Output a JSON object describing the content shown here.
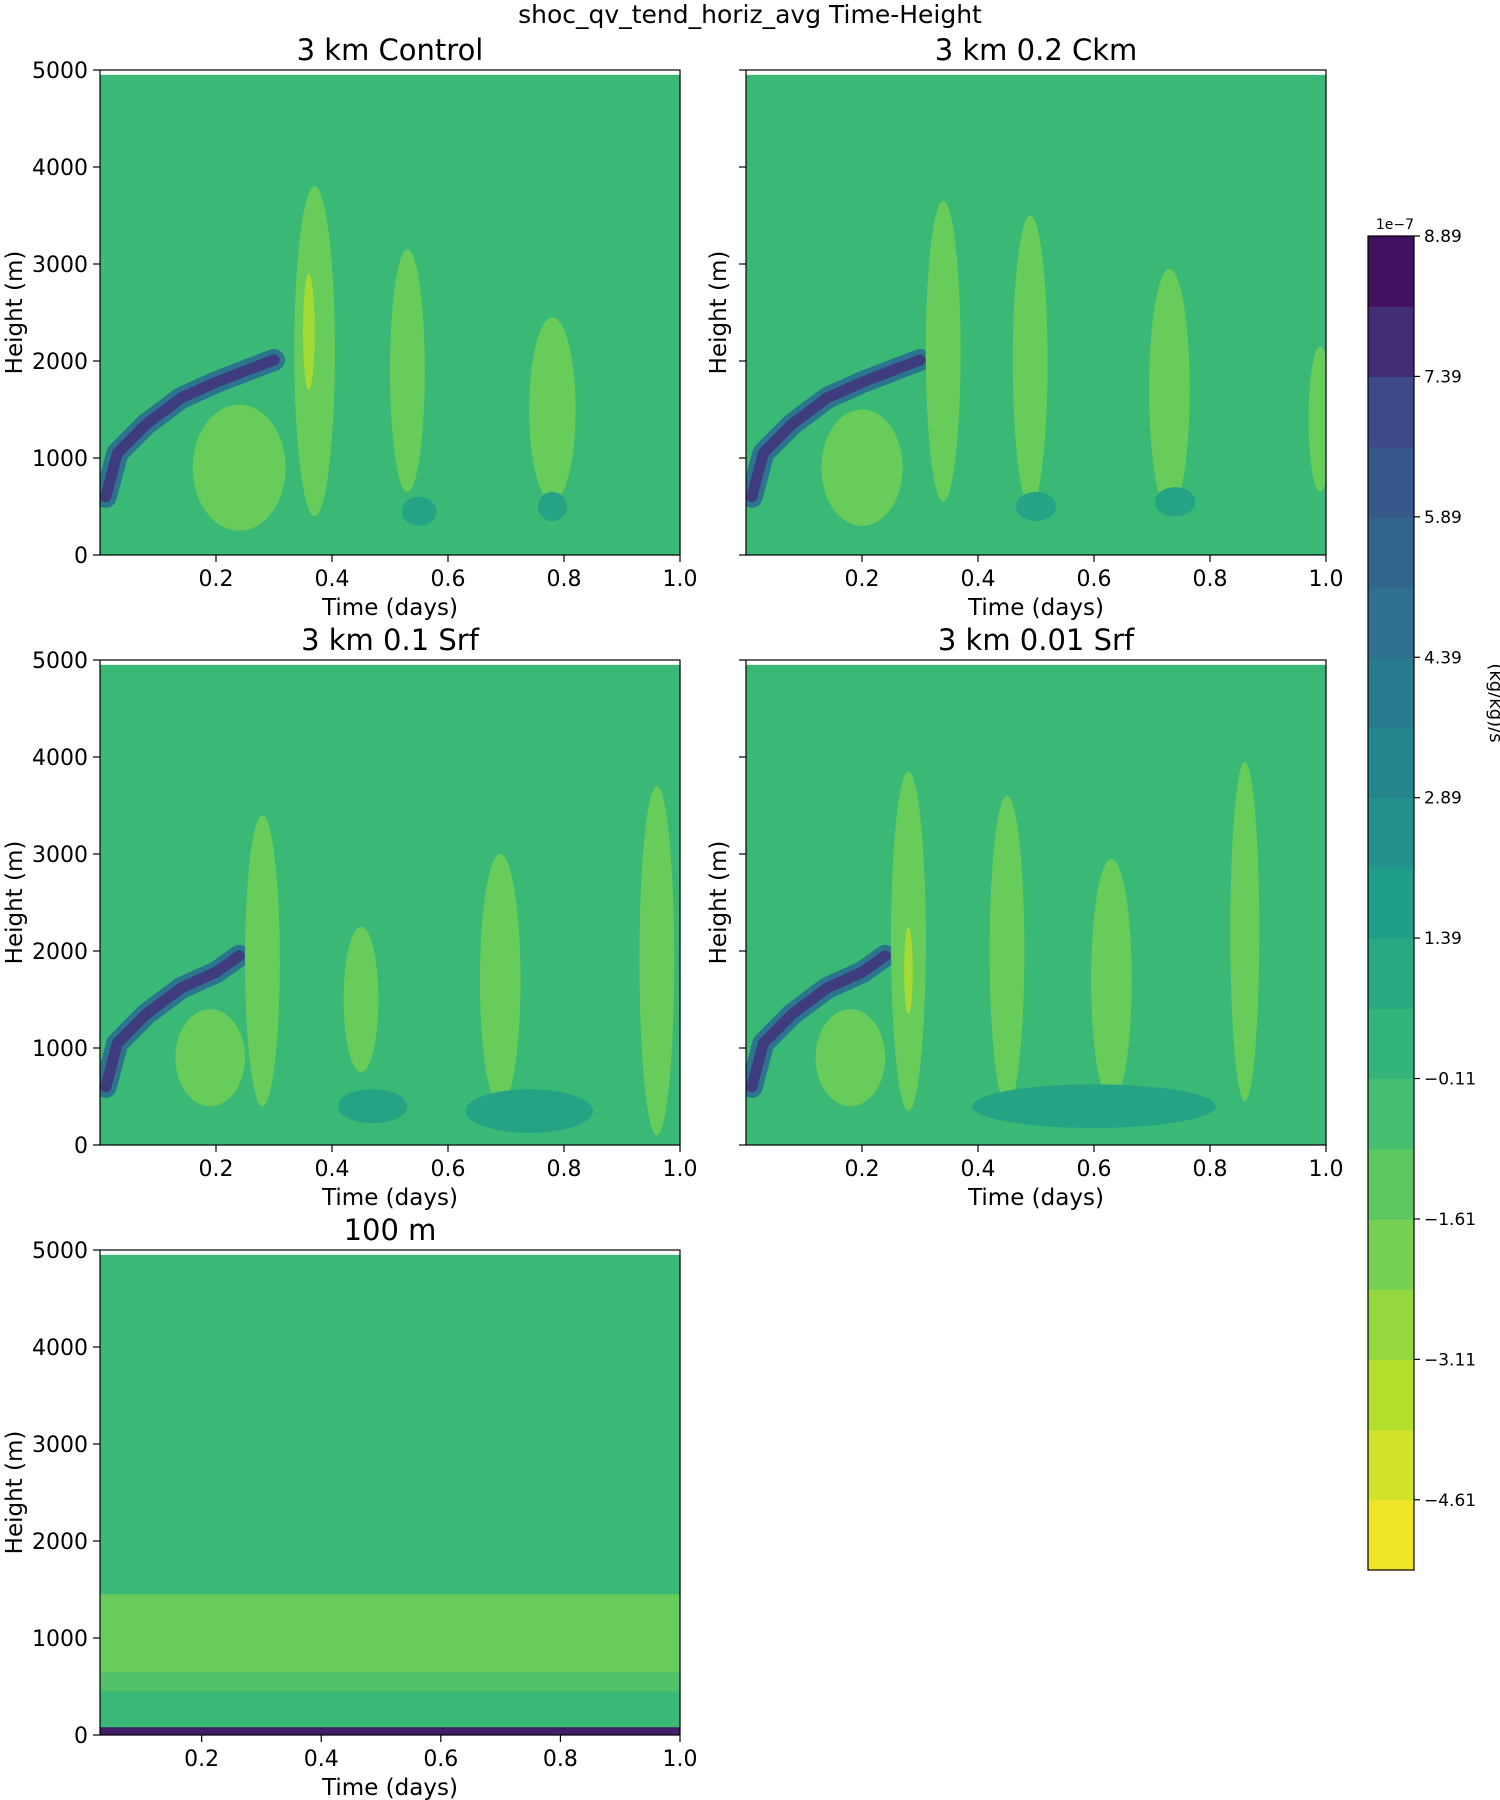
{
  "figure": {
    "suptitle": "shoc_qv_tend_horiz_avg Time-Height"
  },
  "colors": {
    "background_level": "#24a884",
    "ramp_dark": "#440154",
    "ramp_mid": "#21918c",
    "ramp_light": "#fde725"
  },
  "chart_data": [
    {
      "type": "heatmap",
      "title": "3 km Control",
      "xlabel": "Time (days)",
      "ylabel": "Height (m)",
      "xlim": [
        0.0,
        1.0
      ],
      "ylim": [
        0,
        5000
      ],
      "xticks": [
        "0.2",
        "0.4",
        "0.6",
        "0.8",
        "1.0"
      ],
      "yticks": [
        "0",
        "1000",
        "2000",
        "3000",
        "4000",
        "5000"
      ],
      "background_level": -0.11,
      "features": [
        {
          "kind": "band",
          "level": 7.4,
          "points": [
            [
              0.01,
              600
            ],
            [
              0.03,
              1050
            ],
            [
              0.08,
              1350
            ],
            [
              0.14,
              1620
            ],
            [
              0.2,
              1780
            ],
            [
              0.26,
              1920
            ],
            [
              0.3,
              2010
            ]
          ]
        },
        {
          "kind": "blob",
          "level": -1.61,
          "center": [
            0.37,
            2100
          ],
          "size": [
            0.07,
            3400
          ]
        },
        {
          "kind": "blob",
          "level": -1.61,
          "center": [
            0.53,
            1900
          ],
          "size": [
            0.06,
            2500
          ]
        },
        {
          "kind": "blob",
          "level": -1.61,
          "center": [
            0.78,
            1500
          ],
          "size": [
            0.08,
            1900
          ]
        },
        {
          "kind": "blob",
          "level": -1.61,
          "center": [
            0.24,
            900
          ],
          "size": [
            0.16,
            1300
          ]
        },
        {
          "kind": "blob",
          "level": -3.11,
          "center": [
            0.36,
            2300
          ],
          "size": [
            0.02,
            1200
          ]
        },
        {
          "kind": "blob",
          "level": 1.39,
          "center": [
            0.55,
            450
          ],
          "size": [
            0.06,
            300
          ]
        },
        {
          "kind": "blob",
          "level": 1.39,
          "center": [
            0.78,
            500
          ],
          "size": [
            0.05,
            300
          ]
        }
      ]
    },
    {
      "type": "heatmap",
      "title": "3 km 0.2 Ckm",
      "xlabel": "Time (days)",
      "ylabel": "Height (m)",
      "xlim": [
        0.0,
        1.0
      ],
      "ylim": [
        0,
        5000
      ],
      "xticks": [
        "0.2",
        "0.4",
        "0.6",
        "0.8",
        "1.0"
      ],
      "yticks": [
        "0",
        "1000",
        "2000",
        "3000",
        "4000",
        "5000"
      ],
      "background_level": -0.11,
      "features": [
        {
          "kind": "band",
          "level": 7.4,
          "points": [
            [
              0.01,
              600
            ],
            [
              0.03,
              1050
            ],
            [
              0.08,
              1350
            ],
            [
              0.14,
              1620
            ],
            [
              0.2,
              1780
            ],
            [
              0.26,
              1920
            ],
            [
              0.3,
              2010
            ]
          ]
        },
        {
          "kind": "blob",
          "level": -1.61,
          "center": [
            0.34,
            2100
          ],
          "size": [
            0.06,
            3100
          ]
        },
        {
          "kind": "blob",
          "level": -1.61,
          "center": [
            0.49,
            2000
          ],
          "size": [
            0.06,
            3000
          ]
        },
        {
          "kind": "blob",
          "level": -1.61,
          "center": [
            0.73,
            1700
          ],
          "size": [
            0.07,
            2500
          ]
        },
        {
          "kind": "blob",
          "level": -1.61,
          "center": [
            0.99,
            1400
          ],
          "size": [
            0.04,
            1500
          ]
        },
        {
          "kind": "blob",
          "level": -1.61,
          "center": [
            0.2,
            900
          ],
          "size": [
            0.14,
            1200
          ]
        },
        {
          "kind": "blob",
          "level": 1.39,
          "center": [
            0.5,
            500
          ],
          "size": [
            0.07,
            300
          ]
        },
        {
          "kind": "blob",
          "level": 1.39,
          "center": [
            0.74,
            550
          ],
          "size": [
            0.07,
            300
          ]
        }
      ]
    },
    {
      "type": "heatmap",
      "title": "3 km 0.1 Srf",
      "xlabel": "Time (days)",
      "ylabel": "Height (m)",
      "xlim": [
        0.0,
        1.0
      ],
      "ylim": [
        0,
        5000
      ],
      "xticks": [
        "0.2",
        "0.4",
        "0.6",
        "0.8",
        "1.0"
      ],
      "yticks": [
        "0",
        "1000",
        "2000",
        "3000",
        "4000",
        "5000"
      ],
      "background_level": -0.11,
      "features": [
        {
          "kind": "band",
          "level": 7.4,
          "points": [
            [
              0.01,
              600
            ],
            [
              0.03,
              1050
            ],
            [
              0.08,
              1350
            ],
            [
              0.14,
              1620
            ],
            [
              0.2,
              1780
            ],
            [
              0.24,
              1950
            ]
          ]
        },
        {
          "kind": "blob",
          "level": -1.61,
          "center": [
            0.28,
            1900
          ],
          "size": [
            0.06,
            3000
          ]
        },
        {
          "kind": "blob",
          "level": -1.61,
          "center": [
            0.45,
            1500
          ],
          "size": [
            0.06,
            1500
          ]
        },
        {
          "kind": "blob",
          "level": -1.61,
          "center": [
            0.69,
            1700
          ],
          "size": [
            0.07,
            2600
          ]
        },
        {
          "kind": "blob",
          "level": -1.61,
          "center": [
            0.96,
            1900
          ],
          "size": [
            0.06,
            3600
          ]
        },
        {
          "kind": "blob",
          "level": -1.61,
          "center": [
            0.19,
            900
          ],
          "size": [
            0.12,
            1000
          ]
        },
        {
          "kind": "blob",
          "level": 1.39,
          "center": [
            0.47,
            400
          ],
          "size": [
            0.12,
            350
          ]
        },
        {
          "kind": "blob",
          "level": 1.39,
          "center": [
            0.74,
            350
          ],
          "size": [
            0.22,
            450
          ]
        }
      ]
    },
    {
      "type": "heatmap",
      "title": "3 km 0.01 Srf",
      "xlabel": "Time (days)",
      "ylabel": "Height (m)",
      "xlim": [
        0.0,
        1.0
      ],
      "ylim": [
        0,
        5000
      ],
      "xticks": [
        "0.2",
        "0.4",
        "0.6",
        "0.8",
        "1.0"
      ],
      "yticks": [
        "0",
        "1000",
        "2000",
        "3000",
        "4000",
        "5000"
      ],
      "background_level": -0.11,
      "features": [
        {
          "kind": "band",
          "level": 7.4,
          "points": [
            [
              0.01,
              600
            ],
            [
              0.03,
              1050
            ],
            [
              0.08,
              1350
            ],
            [
              0.14,
              1620
            ],
            [
              0.2,
              1780
            ],
            [
              0.24,
              1950
            ]
          ]
        },
        {
          "kind": "blob",
          "level": -1.61,
          "center": [
            0.28,
            2100
          ],
          "size": [
            0.06,
            3500
          ]
        },
        {
          "kind": "blob",
          "level": -1.61,
          "center": [
            0.45,
            2000
          ],
          "size": [
            0.06,
            3200
          ]
        },
        {
          "kind": "blob",
          "level": -1.61,
          "center": [
            0.63,
            1700
          ],
          "size": [
            0.07,
            2500
          ]
        },
        {
          "kind": "blob",
          "level": -1.61,
          "center": [
            0.86,
            2200
          ],
          "size": [
            0.05,
            3500
          ]
        },
        {
          "kind": "blob",
          "level": -1.61,
          "center": [
            0.18,
            900
          ],
          "size": [
            0.12,
            1000
          ]
        },
        {
          "kind": "blob",
          "level": -3.11,
          "center": [
            0.28,
            1800
          ],
          "size": [
            0.015,
            900
          ]
        },
        {
          "kind": "blob",
          "level": 1.39,
          "center": [
            0.6,
            400
          ],
          "size": [
            0.42,
            450
          ]
        }
      ]
    },
    {
      "type": "heatmap",
      "title": "100 m",
      "xlabel": "Time (days)",
      "ylabel": "Height (m)",
      "xlim": [
        0.03,
        1.0
      ],
      "ylim": [
        0,
        5000
      ],
      "xticks": [
        "0.2",
        "0.4",
        "0.6",
        "0.8",
        "1.0"
      ],
      "yticks": [
        "0",
        "1000",
        "2000",
        "3000",
        "4000",
        "5000"
      ],
      "background_level": -0.11,
      "features": [
        {
          "kind": "layer",
          "level": -0.86,
          "bottom": 450,
          "top": 650
        },
        {
          "kind": "layer",
          "level": -1.61,
          "bottom": 650,
          "top": 1450
        },
        {
          "kind": "surface",
          "level": 8.14,
          "bottom": 0,
          "top": 80
        }
      ]
    }
  ],
  "colorbar": {
    "multiplier": "1e−7",
    "label": "(kg/kg)/s",
    "min": -5.36,
    "max": 8.89,
    "tick_values": [
      8.89,
      7.39,
      5.89,
      4.39,
      2.89,
      1.39,
      -0.11,
      -1.61,
      -3.11,
      -4.61
    ],
    "tick_labels": [
      "8.89",
      "7.39",
      "5.89",
      "4.39",
      "2.89",
      "1.39",
      "−0.11",
      "−1.61",
      "−3.11",
      "−4.61"
    ],
    "n_levels": 19
  }
}
